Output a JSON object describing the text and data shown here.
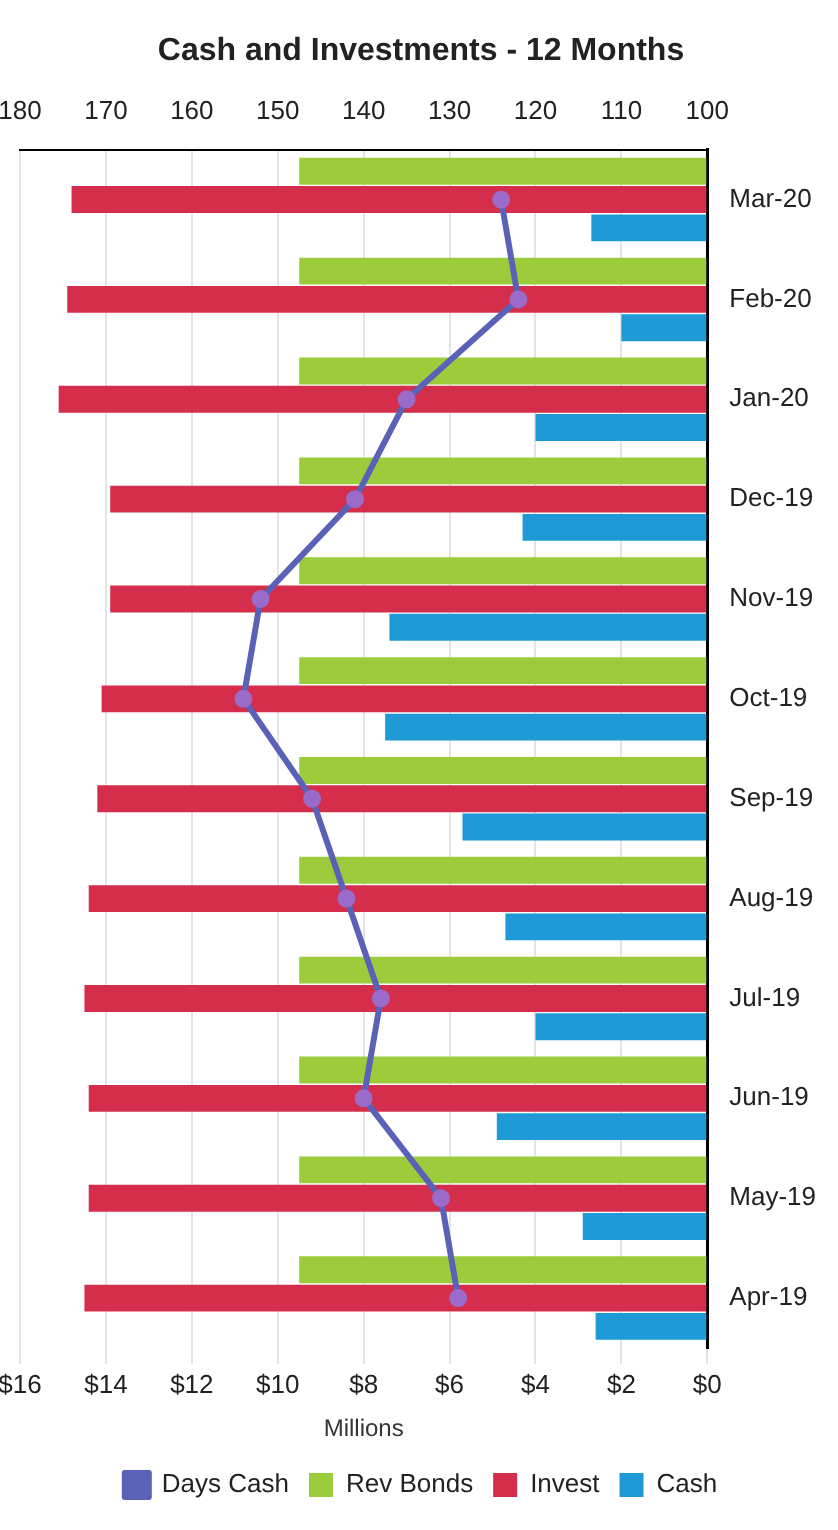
{
  "chart_data": {
    "type": "bar",
    "orientation": "horizontal",
    "title": "Cash and Investments - 12 Months",
    "xlabel": "Millions",
    "categories": [
      "Mar-20",
      "Feb-20",
      "Jan-20",
      "Dec-19",
      "Nov-19",
      "Oct-19",
      "Sep-19",
      "Aug-19",
      "Jul-19",
      "Jun-19",
      "May-19",
      "Apr-19"
    ],
    "series": [
      {
        "name": "Rev Bonds",
        "color": "#9ccc3c",
        "values": [
          9.5,
          9.5,
          9.5,
          9.5,
          9.5,
          9.5,
          9.5,
          9.5,
          9.5,
          9.5,
          9.5,
          9.5
        ]
      },
      {
        "name": "Invest",
        "color": "#d42e4c",
        "values": [
          14.8,
          14.9,
          15.1,
          13.9,
          13.9,
          14.1,
          14.2,
          14.4,
          14.5,
          14.4,
          14.4,
          14.5
        ]
      },
      {
        "name": "Cash",
        "color": "#1f9ad6",
        "values": [
          2.7,
          2.0,
          4.0,
          4.3,
          7.4,
          7.5,
          5.7,
          4.7,
          4.0,
          4.9,
          2.9,
          2.6
        ]
      },
      {
        "name": "Days Cash",
        "type": "line",
        "axis": "x2",
        "color": "#5a62b8",
        "values": [
          124,
          122,
          135,
          141,
          152,
          154,
          146,
          142,
          138,
          140,
          131,
          129
        ]
      }
    ],
    "xlim": [
      16,
      0
    ],
    "xticks": [
      {
        "value": 0,
        "label": "$0"
      },
      {
        "value": 2,
        "label": "$2"
      },
      {
        "value": 4,
        "label": "$4"
      },
      {
        "value": 6,
        "label": "$6"
      },
      {
        "value": 8,
        "label": "$8"
      },
      {
        "value": 10,
        "label": "$10"
      },
      {
        "value": 12,
        "label": "$12"
      },
      {
        "value": 14,
        "label": "$14"
      },
      {
        "value": 16,
        "label": "$16"
      }
    ],
    "x2lim": [
      180,
      100
    ],
    "x2ticks": [
      100,
      110,
      120,
      130,
      140,
      150,
      160,
      170,
      180
    ],
    "grid": "x",
    "legend": "bottom",
    "marker": "circle",
    "line_style": "solid"
  }
}
